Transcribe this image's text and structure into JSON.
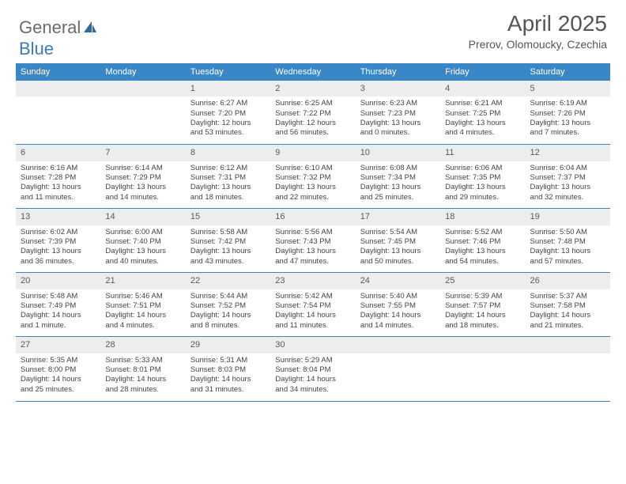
{
  "brand": {
    "part1": "General",
    "part2": "Blue"
  },
  "title": "April 2025",
  "location": "Prerov, Olomoucky, Czechia",
  "colors": {
    "header_bg": "#3a87c7",
    "header_text": "#ffffff",
    "daynum_bg": "#eceded",
    "border": "#3a87c7",
    "text": "#444444",
    "logo_gray": "#6a6a6a",
    "logo_blue": "#3a7bbf"
  },
  "day_names": [
    "Sunday",
    "Monday",
    "Tuesday",
    "Wednesday",
    "Thursday",
    "Friday",
    "Saturday"
  ],
  "weeks": [
    [
      null,
      null,
      {
        "n": "1",
        "sr": "Sunrise: 6:27 AM",
        "ss": "Sunset: 7:20 PM",
        "dl1": "Daylight: 12 hours",
        "dl2": "and 53 minutes."
      },
      {
        "n": "2",
        "sr": "Sunrise: 6:25 AM",
        "ss": "Sunset: 7:22 PM",
        "dl1": "Daylight: 12 hours",
        "dl2": "and 56 minutes."
      },
      {
        "n": "3",
        "sr": "Sunrise: 6:23 AM",
        "ss": "Sunset: 7:23 PM",
        "dl1": "Daylight: 13 hours",
        "dl2": "and 0 minutes."
      },
      {
        "n": "4",
        "sr": "Sunrise: 6:21 AM",
        "ss": "Sunset: 7:25 PM",
        "dl1": "Daylight: 13 hours",
        "dl2": "and 4 minutes."
      },
      {
        "n": "5",
        "sr": "Sunrise: 6:19 AM",
        "ss": "Sunset: 7:26 PM",
        "dl1": "Daylight: 13 hours",
        "dl2": "and 7 minutes."
      }
    ],
    [
      {
        "n": "6",
        "sr": "Sunrise: 6:16 AM",
        "ss": "Sunset: 7:28 PM",
        "dl1": "Daylight: 13 hours",
        "dl2": "and 11 minutes."
      },
      {
        "n": "7",
        "sr": "Sunrise: 6:14 AM",
        "ss": "Sunset: 7:29 PM",
        "dl1": "Daylight: 13 hours",
        "dl2": "and 14 minutes."
      },
      {
        "n": "8",
        "sr": "Sunrise: 6:12 AM",
        "ss": "Sunset: 7:31 PM",
        "dl1": "Daylight: 13 hours",
        "dl2": "and 18 minutes."
      },
      {
        "n": "9",
        "sr": "Sunrise: 6:10 AM",
        "ss": "Sunset: 7:32 PM",
        "dl1": "Daylight: 13 hours",
        "dl2": "and 22 minutes."
      },
      {
        "n": "10",
        "sr": "Sunrise: 6:08 AM",
        "ss": "Sunset: 7:34 PM",
        "dl1": "Daylight: 13 hours",
        "dl2": "and 25 minutes."
      },
      {
        "n": "11",
        "sr": "Sunrise: 6:06 AM",
        "ss": "Sunset: 7:35 PM",
        "dl1": "Daylight: 13 hours",
        "dl2": "and 29 minutes."
      },
      {
        "n": "12",
        "sr": "Sunrise: 6:04 AM",
        "ss": "Sunset: 7:37 PM",
        "dl1": "Daylight: 13 hours",
        "dl2": "and 32 minutes."
      }
    ],
    [
      {
        "n": "13",
        "sr": "Sunrise: 6:02 AM",
        "ss": "Sunset: 7:39 PM",
        "dl1": "Daylight: 13 hours",
        "dl2": "and 36 minutes."
      },
      {
        "n": "14",
        "sr": "Sunrise: 6:00 AM",
        "ss": "Sunset: 7:40 PM",
        "dl1": "Daylight: 13 hours",
        "dl2": "and 40 minutes."
      },
      {
        "n": "15",
        "sr": "Sunrise: 5:58 AM",
        "ss": "Sunset: 7:42 PM",
        "dl1": "Daylight: 13 hours",
        "dl2": "and 43 minutes."
      },
      {
        "n": "16",
        "sr": "Sunrise: 5:56 AM",
        "ss": "Sunset: 7:43 PM",
        "dl1": "Daylight: 13 hours",
        "dl2": "and 47 minutes."
      },
      {
        "n": "17",
        "sr": "Sunrise: 5:54 AM",
        "ss": "Sunset: 7:45 PM",
        "dl1": "Daylight: 13 hours",
        "dl2": "and 50 minutes."
      },
      {
        "n": "18",
        "sr": "Sunrise: 5:52 AM",
        "ss": "Sunset: 7:46 PM",
        "dl1": "Daylight: 13 hours",
        "dl2": "and 54 minutes."
      },
      {
        "n": "19",
        "sr": "Sunrise: 5:50 AM",
        "ss": "Sunset: 7:48 PM",
        "dl1": "Daylight: 13 hours",
        "dl2": "and 57 minutes."
      }
    ],
    [
      {
        "n": "20",
        "sr": "Sunrise: 5:48 AM",
        "ss": "Sunset: 7:49 PM",
        "dl1": "Daylight: 14 hours",
        "dl2": "and 1 minute."
      },
      {
        "n": "21",
        "sr": "Sunrise: 5:46 AM",
        "ss": "Sunset: 7:51 PM",
        "dl1": "Daylight: 14 hours",
        "dl2": "and 4 minutes."
      },
      {
        "n": "22",
        "sr": "Sunrise: 5:44 AM",
        "ss": "Sunset: 7:52 PM",
        "dl1": "Daylight: 14 hours",
        "dl2": "and 8 minutes."
      },
      {
        "n": "23",
        "sr": "Sunrise: 5:42 AM",
        "ss": "Sunset: 7:54 PM",
        "dl1": "Daylight: 14 hours",
        "dl2": "and 11 minutes."
      },
      {
        "n": "24",
        "sr": "Sunrise: 5:40 AM",
        "ss": "Sunset: 7:55 PM",
        "dl1": "Daylight: 14 hours",
        "dl2": "and 14 minutes."
      },
      {
        "n": "25",
        "sr": "Sunrise: 5:39 AM",
        "ss": "Sunset: 7:57 PM",
        "dl1": "Daylight: 14 hours",
        "dl2": "and 18 minutes."
      },
      {
        "n": "26",
        "sr": "Sunrise: 5:37 AM",
        "ss": "Sunset: 7:58 PM",
        "dl1": "Daylight: 14 hours",
        "dl2": "and 21 minutes."
      }
    ],
    [
      {
        "n": "27",
        "sr": "Sunrise: 5:35 AM",
        "ss": "Sunset: 8:00 PM",
        "dl1": "Daylight: 14 hours",
        "dl2": "and 25 minutes."
      },
      {
        "n": "28",
        "sr": "Sunrise: 5:33 AM",
        "ss": "Sunset: 8:01 PM",
        "dl1": "Daylight: 14 hours",
        "dl2": "and 28 minutes."
      },
      {
        "n": "29",
        "sr": "Sunrise: 5:31 AM",
        "ss": "Sunset: 8:03 PM",
        "dl1": "Daylight: 14 hours",
        "dl2": "and 31 minutes."
      },
      {
        "n": "30",
        "sr": "Sunrise: 5:29 AM",
        "ss": "Sunset: 8:04 PM",
        "dl1": "Daylight: 14 hours",
        "dl2": "and 34 minutes."
      },
      null,
      null,
      null
    ]
  ]
}
